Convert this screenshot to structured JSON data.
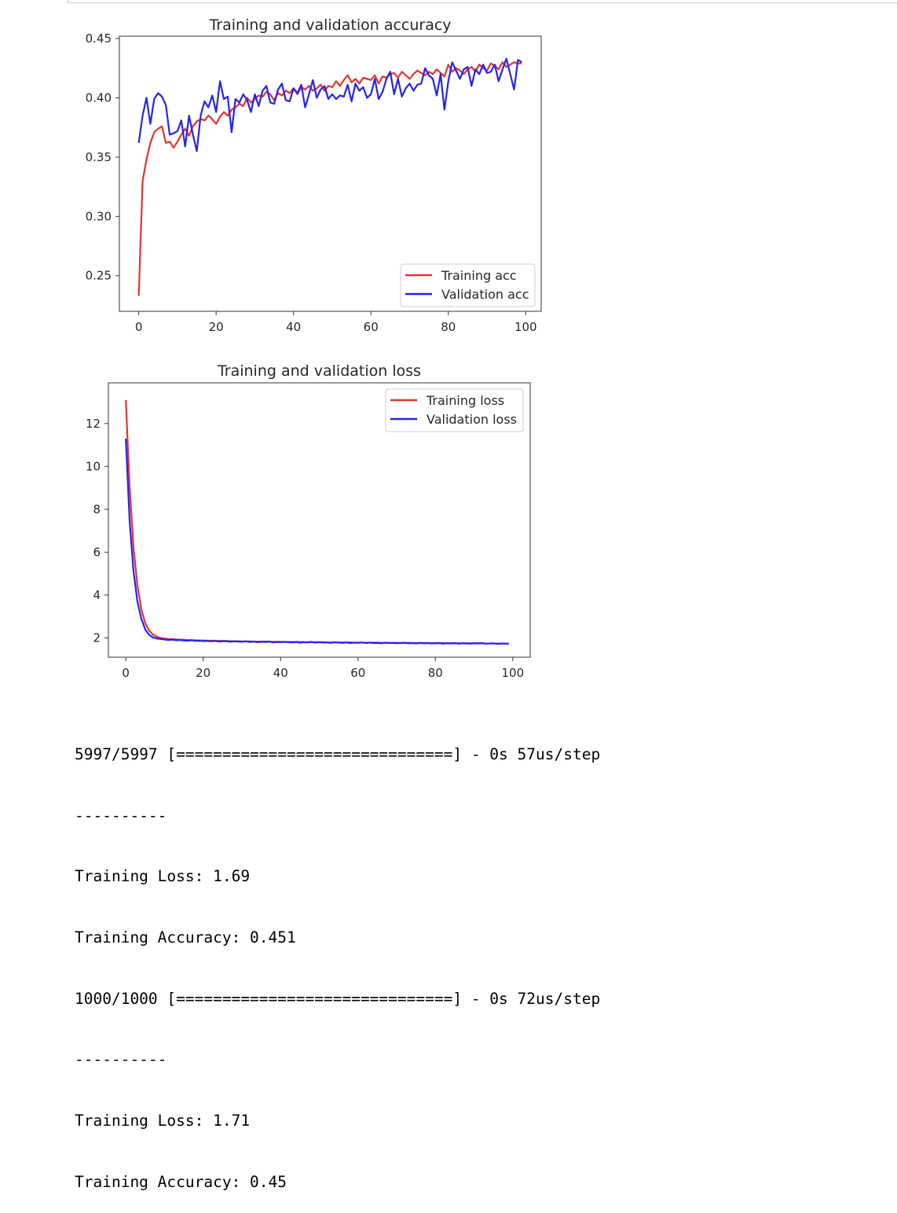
{
  "chart_data": [
    {
      "type": "line",
      "title": "Training and validation accuracy",
      "xlim": [
        -5,
        104
      ],
      "ylim": [
        0.22,
        0.452
      ],
      "xticks": [
        0,
        20,
        40,
        60,
        80,
        100
      ],
      "yticks": [
        0.25,
        0.3,
        0.35,
        0.4,
        0.45
      ],
      "ytick_labels": [
        "0.25",
        "0.30",
        "0.35",
        "0.40",
        "0.45"
      ],
      "legend_position": "lower-right",
      "series": [
        {
          "name": "Training acc",
          "color": "#e8322d",
          "values": [
            0.233,
            0.33,
            0.348,
            0.362,
            0.371,
            0.374,
            0.376,
            0.362,
            0.363,
            0.358,
            0.363,
            0.369,
            0.374,
            0.368,
            0.376,
            0.38,
            0.382,
            0.381,
            0.385,
            0.382,
            0.378,
            0.384,
            0.388,
            0.385,
            0.39,
            0.392,
            0.395,
            0.393,
            0.4,
            0.396,
            0.399,
            0.402,
            0.401,
            0.405,
            0.403,
            0.398,
            0.404,
            0.402,
            0.406,
            0.404,
            0.408,
            0.403,
            0.409,
            0.407,
            0.41,
            0.406,
            0.408,
            0.411,
            0.406,
            0.41,
            0.409,
            0.414,
            0.41,
            0.415,
            0.419,
            0.413,
            0.416,
            0.412,
            0.417,
            0.416,
            0.415,
            0.419,
            0.412,
            0.418,
            0.417,
            0.42,
            0.421,
            0.417,
            0.422,
            0.419,
            0.416,
            0.42,
            0.423,
            0.421,
            0.419,
            0.422,
            0.42,
            0.424,
            0.421,
            0.418,
            0.428,
            0.422,
            0.425,
            0.423,
            0.42,
            0.424,
            0.426,
            0.422,
            0.428,
            0.425,
            0.423,
            0.429,
            0.427,
            0.424,
            0.43,
            0.426,
            0.428,
            0.43,
            0.429,
            0.429
          ]
        },
        {
          "name": "Validation acc",
          "color": "#2424f0",
          "values": [
            0.362,
            0.385,
            0.4,
            0.378,
            0.399,
            0.404,
            0.401,
            0.394,
            0.369,
            0.37,
            0.372,
            0.381,
            0.359,
            0.385,
            0.369,
            0.355,
            0.385,
            0.397,
            0.392,
            0.402,
            0.388,
            0.414,
            0.399,
            0.401,
            0.371,
            0.399,
            0.396,
            0.403,
            0.398,
            0.388,
            0.403,
            0.393,
            0.406,
            0.41,
            0.396,
            0.395,
            0.407,
            0.412,
            0.398,
            0.397,
            0.408,
            0.404,
            0.411,
            0.392,
            0.403,
            0.415,
            0.4,
            0.407,
            0.41,
            0.399,
            0.403,
            0.399,
            0.402,
            0.401,
            0.411,
            0.397,
            0.412,
            0.406,
            0.409,
            0.4,
            0.403,
            0.416,
            0.399,
            0.405,
            0.416,
            0.422,
            0.403,
            0.416,
            0.401,
            0.408,
            0.412,
            0.406,
            0.411,
            0.412,
            0.425,
            0.419,
            0.416,
            0.402,
            0.42,
            0.39,
            0.414,
            0.43,
            0.423,
            0.416,
            0.424,
            0.426,
            0.41,
            0.424,
            0.42,
            0.428,
            0.421,
            0.422,
            0.428,
            0.414,
            0.424,
            0.433,
            0.42,
            0.407,
            0.432,
            0.43
          ]
        }
      ]
    },
    {
      "type": "line",
      "title": "Training and validation loss",
      "xlim": [
        -4.5,
        104.5
      ],
      "ylim": [
        1.1,
        13.9
      ],
      "xticks": [
        0,
        20,
        40,
        60,
        80,
        100
      ],
      "yticks": [
        2,
        4,
        6,
        8,
        10,
        12
      ],
      "ytick_labels": [
        "2",
        "4",
        "6",
        "8",
        "10",
        "12"
      ],
      "legend_position": "upper-right",
      "series": [
        {
          "name": "Training loss",
          "color": "#e8322d",
          "values": [
            13.1,
            9.0,
            6.2,
            4.45,
            3.35,
            2.7,
            2.35,
            2.15,
            2.06,
            2.0,
            1.97,
            1.95,
            1.94,
            1.93,
            1.92,
            1.91,
            1.9,
            1.9,
            1.89,
            1.88,
            1.88,
            1.87,
            1.87,
            1.87,
            1.86,
            1.86,
            1.86,
            1.85,
            1.85,
            1.85,
            1.84,
            1.84,
            1.84,
            1.83,
            1.83,
            1.83,
            1.83,
            1.82,
            1.82,
            1.82,
            1.82,
            1.81,
            1.81,
            1.81,
            1.81,
            1.81,
            1.8,
            1.8,
            1.8,
            1.8,
            1.8,
            1.8,
            1.79,
            1.79,
            1.79,
            1.79,
            1.79,
            1.79,
            1.79,
            1.78,
            1.78,
            1.78,
            1.78,
            1.78,
            1.78,
            1.78,
            1.77,
            1.77,
            1.77,
            1.77,
            1.77,
            1.77,
            1.77,
            1.77,
            1.76,
            1.76,
            1.76,
            1.76,
            1.76,
            1.76,
            1.76,
            1.76,
            1.76,
            1.75,
            1.75,
            1.75,
            1.75,
            1.75,
            1.75,
            1.75,
            1.75,
            1.75,
            1.75,
            1.74,
            1.74,
            1.74,
            1.74,
            1.74,
            1.74,
            1.74
          ]
        },
        {
          "name": "Validation loss",
          "color": "#2424f0",
          "values": [
            11.3,
            7.4,
            5.1,
            3.7,
            2.9,
            2.4,
            2.15,
            2.02,
            1.97,
            1.95,
            1.93,
            1.9,
            1.92,
            1.89,
            1.9,
            1.88,
            1.87,
            1.89,
            1.86,
            1.87,
            1.85,
            1.86,
            1.84,
            1.86,
            1.83,
            1.84,
            1.85,
            1.82,
            1.84,
            1.83,
            1.82,
            1.84,
            1.81,
            1.83,
            1.8,
            1.82,
            1.81,
            1.83,
            1.79,
            1.81,
            1.8,
            1.82,
            1.8,
            1.79,
            1.81,
            1.78,
            1.8,
            1.79,
            1.81,
            1.78,
            1.8,
            1.78,
            1.79,
            1.77,
            1.8,
            1.78,
            1.77,
            1.79,
            1.76,
            1.78,
            1.77,
            1.79,
            1.76,
            1.78,
            1.76,
            1.77,
            1.75,
            1.78,
            1.76,
            1.77,
            1.75,
            1.76,
            1.77,
            1.75,
            1.76,
            1.74,
            1.77,
            1.75,
            1.76,
            1.74,
            1.75,
            1.76,
            1.73,
            1.75,
            1.74,
            1.76,
            1.73,
            1.75,
            1.74,
            1.73,
            1.75,
            1.74,
            1.76,
            1.73,
            1.74,
            1.75,
            1.72,
            1.74,
            1.73,
            1.74
          ]
        }
      ]
    }
  ],
  "output": {
    "lines": [
      "5997/5997 [==============================] - 0s 57us/step",
      "----------",
      "Training Loss: 1.69",
      "Training Accuracy: 0.451",
      "1000/1000 [==============================] - 0s 72us/step",
      "----------",
      "Training Loss: 1.71",
      "Training Accuracy: 0.45"
    ]
  }
}
